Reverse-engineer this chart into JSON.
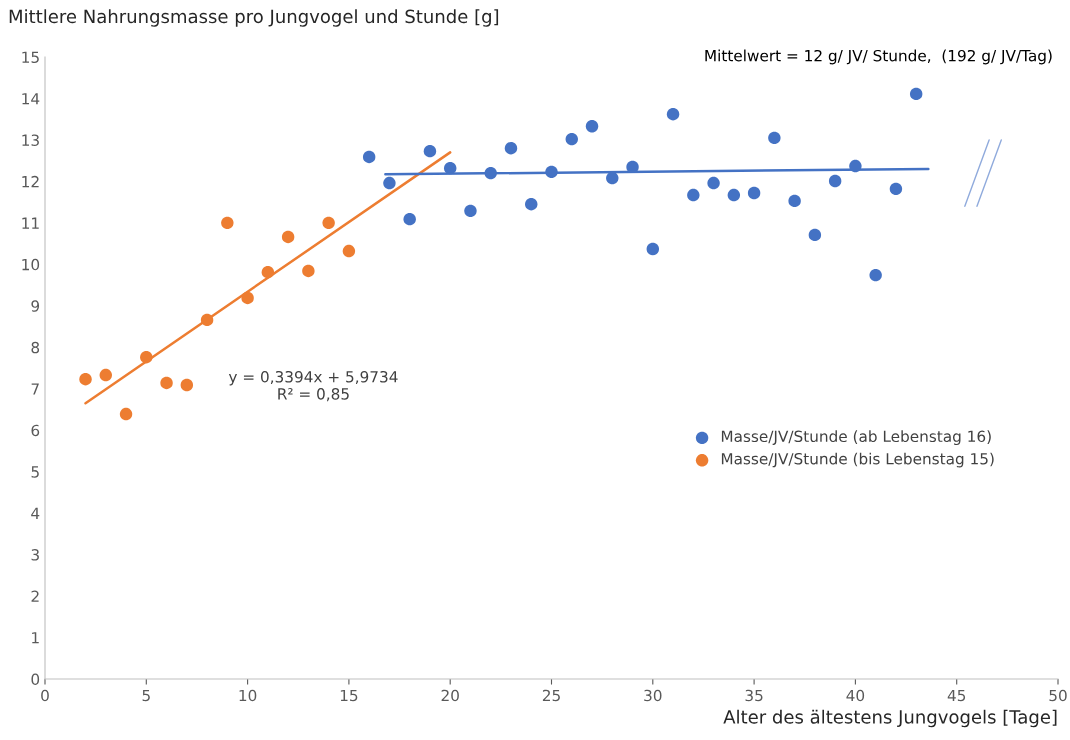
{
  "chart_data": {
    "type": "scatter",
    "title": "Mittlere Nahrungsmasse pro Jungvogel und Stunde [g]",
    "xlabel": "Alter des ältestens Jungvogels [Tage]",
    "xlim": [
      0,
      50
    ],
    "ylim": [
      0,
      15
    ],
    "xticks": [
      0,
      5,
      10,
      15,
      20,
      25,
      30,
      35,
      40,
      45,
      50
    ],
    "yticks": [
      0,
      1,
      2,
      3,
      4,
      5,
      6,
      7,
      8,
      9,
      10,
      11,
      12,
      13,
      14,
      15
    ],
    "grid": false,
    "legend": "right",
    "marker": "circle",
    "annotations": [
      "Mittelwert = 12 g/ JV/ Stunde,  (192 g/ JV/Tag)",
      "y = 0,3394x + 5,9734\nR² = 0,85"
    ],
    "series": [
      {
        "name": "Masse/JV/Stunde (ab Lebenstag 16)",
        "color": "#4472c4",
        "x": [
          16,
          17,
          18,
          19,
          20,
          21,
          22,
          23,
          24,
          25,
          26,
          27,
          28,
          29,
          30,
          31,
          32,
          33,
          34,
          35,
          36,
          37,
          38,
          39,
          40,
          41,
          42,
          43
        ],
        "values": [
          12.59,
          11.96,
          11.09,
          12.73,
          12.32,
          11.29,
          12.2,
          12.8,
          11.45,
          12.23,
          13.02,
          13.33,
          12.08,
          12.35,
          10.37,
          13.62,
          11.67,
          11.96,
          11.67,
          11.72,
          13.05,
          11.53,
          10.71,
          12.01,
          12.37,
          9.74,
          11.82,
          14.11
        ]
      },
      {
        "name": "Masse/JV/Stunde (bis Lebenstag 15)",
        "color": "#ed7d31",
        "x": [
          2,
          3,
          4,
          5,
          6,
          7,
          8,
          9,
          10,
          11,
          12,
          13,
          14,
          15
        ],
        "values": [
          7.23,
          7.33,
          6.39,
          7.76,
          7.14,
          7.09,
          8.66,
          11.0,
          9.19,
          9.81,
          10.66,
          9.84,
          11.0,
          10.32
        ]
      },
      {
        "type": "line",
        "marker": "none",
        "color": "#ed7d31",
        "x": [
          2,
          20
        ],
        "values": [
          6.65,
          12.7
        ]
      },
      {
        "type": "line",
        "marker": "none",
        "color": "#4472c4",
        "x": [
          16.8,
          43.6
        ],
        "values": [
          12.17,
          12.3
        ]
      }
    ]
  }
}
